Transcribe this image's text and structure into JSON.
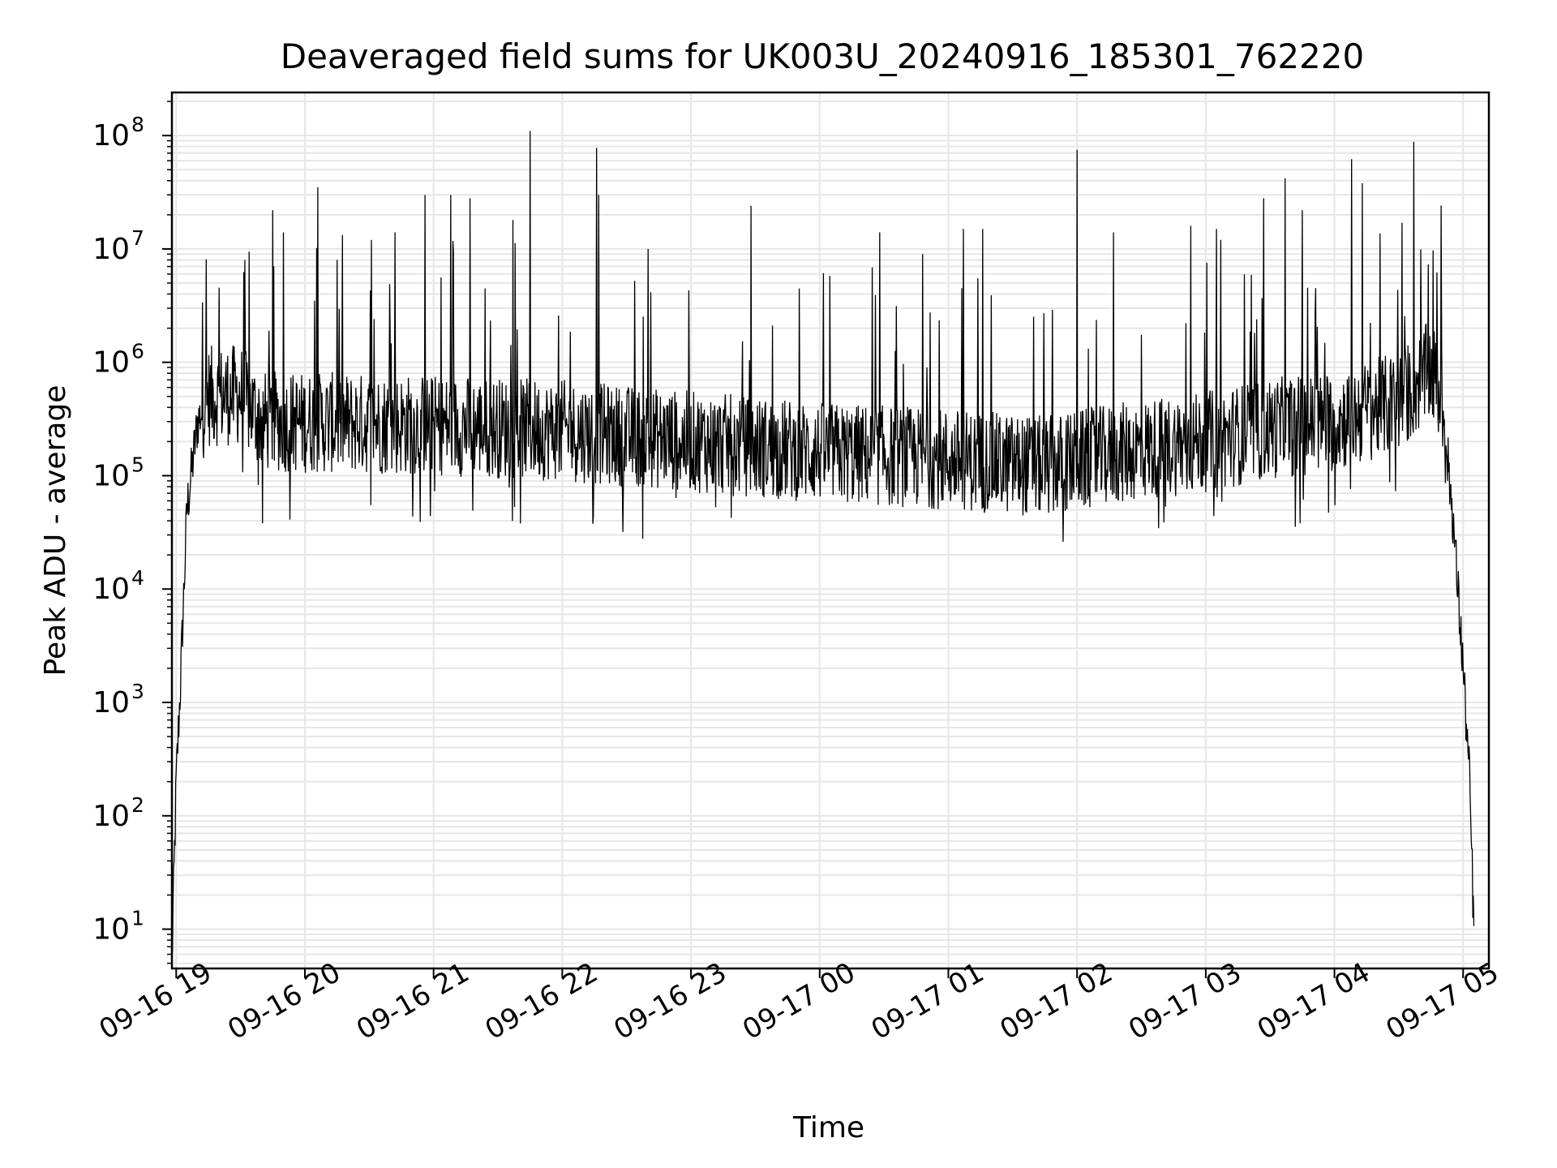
{
  "chart_data": {
    "type": "line",
    "title": "Deaveraged field sums for UK003U_20240916_185301_762220",
    "xlabel": "Time",
    "ylabel": "Peak ADU - average",
    "yscale": "log",
    "ylim": [
      4.5,
      240000000
    ],
    "xlim": [
      "2024-09-16 18:58",
      "2024-09-17 05:12"
    ],
    "grid": true,
    "legend": "none",
    "line_color": "#000000",
    "grid_color": "#e6e6e6",
    "x_ticks": [
      {
        "t": "2024-09-16 19:00",
        "label": "09-16 19"
      },
      {
        "t": "2024-09-16 20:00",
        "label": "09-16 20"
      },
      {
        "t": "2024-09-16 21:00",
        "label": "09-16 21"
      },
      {
        "t": "2024-09-16 22:00",
        "label": "09-16 22"
      },
      {
        "t": "2024-09-16 23:00",
        "label": "09-16 23"
      },
      {
        "t": "2024-09-17 00:00",
        "label": "09-17 00"
      },
      {
        "t": "2024-09-17 01:00",
        "label": "09-17 01"
      },
      {
        "t": "2024-09-17 02:00",
        "label": "09-17 02"
      },
      {
        "t": "2024-09-17 03:00",
        "label": "09-17 03"
      },
      {
        "t": "2024-09-17 04:00",
        "label": "09-17 04"
      },
      {
        "t": "2024-09-17 05:00",
        "label": "09-17 05"
      }
    ],
    "y_ticks": [
      {
        "value": 10,
        "base": "10",
        "exp": "1"
      },
      {
        "value": 100,
        "base": "10",
        "exp": "2"
      },
      {
        "value": 1000,
        "base": "10",
        "exp": "3"
      },
      {
        "value": 10000,
        "base": "10",
        "exp": "4"
      },
      {
        "value": 100000,
        "base": "10",
        "exp": "5"
      },
      {
        "value": 1000000,
        "base": "10",
        "exp": "6"
      },
      {
        "value": 10000000,
        "base": "10",
        "exp": "7"
      },
      {
        "value": 100000000,
        "base": "10",
        "exp": "8"
      }
    ],
    "series": [
      {
        "baseline": [
          [
            "2024-09-16 18:58",
            5
          ],
          [
            "2024-09-16 19:00",
            200
          ],
          [
            "2024-09-16 19:02",
            1500
          ],
          [
            "2024-09-16 19:05",
            50000
          ],
          [
            "2024-09-16 19:10",
            300000
          ],
          [
            "2024-09-16 19:15",
            500000
          ],
          [
            "2024-09-16 19:30",
            520000
          ],
          [
            "2024-09-16 19:40",
            300000
          ],
          [
            "2024-09-16 21:00",
            280000
          ],
          [
            "2024-09-16 22:00",
            250000
          ],
          [
            "2024-09-16 23:00",
            200000
          ],
          [
            "2024-09-17 00:00",
            160000
          ],
          [
            "2024-09-17 01:00",
            140000
          ],
          [
            "2024-09-17 01:45",
            120000
          ],
          [
            "2024-09-17 02:30",
            170000
          ],
          [
            "2024-09-17 03:00",
            200000
          ],
          [
            "2024-09-17 03:30",
            260000
          ],
          [
            "2024-09-17 04:00",
            300000
          ],
          [
            "2024-09-17 04:30",
            450000
          ],
          [
            "2024-09-17 04:45",
            850000
          ],
          [
            "2024-09-17 04:50",
            500000
          ],
          [
            "2024-09-17 04:55",
            50000
          ],
          [
            "2024-09-17 05:00",
            2000
          ],
          [
            "2024-09-17 05:03",
            200
          ],
          [
            "2024-09-17 05:05",
            10
          ]
        ],
        "spikes": [
          [
            "2024-09-16 19:32",
            8000000
          ],
          [
            "2024-09-16 19:45",
            22000000
          ],
          [
            "2024-09-16 19:50",
            14000000
          ],
          [
            "2024-09-16 20:06",
            35000000
          ],
          [
            "2024-09-16 20:15",
            8000000
          ],
          [
            "2024-09-16 20:31",
            12000000
          ],
          [
            "2024-09-16 20:42",
            14000000
          ],
          [
            "2024-09-16 20:56",
            30000000
          ],
          [
            "2024-09-16 21:08",
            30000000
          ],
          [
            "2024-09-16 21:17",
            28000000
          ],
          [
            "2024-09-16 21:37",
            18000000
          ],
          [
            "2024-09-16 21:45",
            110000000
          ],
          [
            "2024-09-16 22:16",
            78000000
          ],
          [
            "2024-09-16 22:17",
            30000000
          ],
          [
            "2024-09-16 22:40",
            10000000
          ],
          [
            "2024-09-16 23:28",
            24000000
          ],
          [
            "2024-09-17 00:28",
            14000000
          ],
          [
            "2024-09-17 00:48",
            9000000
          ],
          [
            "2024-09-17 01:07",
            15000000
          ],
          [
            "2024-09-17 01:16",
            15000000
          ],
          [
            "2024-09-17 02:00",
            75000000
          ],
          [
            "2024-09-17 02:17",
            14000000
          ],
          [
            "2024-09-17 02:53",
            16000000
          ],
          [
            "2024-09-17 03:05",
            15000000
          ],
          [
            "2024-09-17 03:07",
            12000000
          ],
          [
            "2024-09-17 03:27",
            28000000
          ],
          [
            "2024-09-17 03:37",
            42000000
          ],
          [
            "2024-09-17 03:45",
            22000000
          ],
          [
            "2024-09-17 04:08",
            62000000
          ],
          [
            "2024-09-17 04:13",
            38000000
          ],
          [
            "2024-09-17 04:37",
            88000000
          ]
        ]
      }
    ]
  }
}
